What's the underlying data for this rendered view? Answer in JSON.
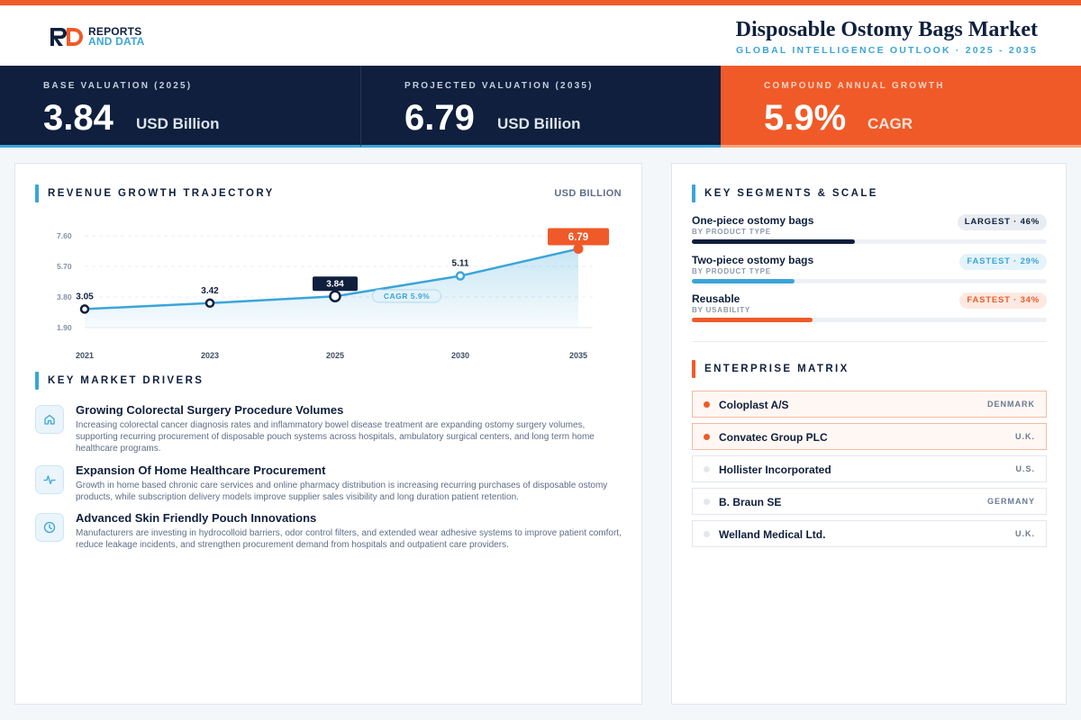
{
  "header": {
    "logo_line1": "REPORTS",
    "logo_line2": "AND DATA",
    "title": "Disposable Ostomy Bags Market",
    "subtitle": "GLOBAL INTELLIGENCE OUTLOOK  ·  2025 - 2035"
  },
  "kpis": [
    {
      "label": "BASE VALUATION (2025)",
      "value": "3.84",
      "unit": "USD Billion"
    },
    {
      "label": "PROJECTED VALUATION (2035)",
      "value": "6.79",
      "unit": "USD Billion"
    },
    {
      "label": "COMPOUND ANNUAL GROWTH",
      "value": "5.9%",
      "unit": "CAGR"
    }
  ],
  "revenue": {
    "title": "REVENUE GROWTH TRAJECTORY",
    "unit_label": "USD BILLION"
  },
  "chart_data": {
    "type": "line",
    "title": "REVENUE GROWTH TRAJECTORY",
    "ylabel": "USD BILLION",
    "x": [
      "2021",
      "2023",
      "2025",
      "2030",
      "2035"
    ],
    "series": [
      {
        "values": [
          3.05,
          3.42,
          3.84,
          5.11,
          6.79
        ]
      }
    ],
    "data_labels": [
      "3.05",
      "3.42",
      "3.84",
      "5.11",
      "6.79"
    ],
    "yticks": [
      "1.90",
      "3.80",
      "5.70",
      "7.60"
    ],
    "ylim": [
      1.9,
      7.6
    ],
    "annotation": "CAGR 5.9%",
    "highlight_points": [
      "2025",
      "2035"
    ],
    "grid": true,
    "area_fill": true,
    "colors": {
      "line": "#3aa5d8",
      "highlight_2025": "#0f1f3d",
      "highlight_2035": "#f05a28"
    }
  },
  "drivers": {
    "title": "KEY MARKET DRIVERS",
    "items": [
      {
        "icon": "home-icon",
        "title": "Growing Colorectal Surgery Procedure Volumes",
        "desc": "Increasing colorectal cancer diagnosis rates and inflammatory bowel disease treatment are expanding ostomy surgery volumes, supporting recurring procurement of disposable pouch systems across hospitals, ambulatory surgical centers, and long term home healthcare programs."
      },
      {
        "icon": "activity-icon",
        "title": "Expansion Of Home Healthcare Procurement",
        "desc": "Growth in home based chronic care services and online pharmacy distribution is increasing recurring purchases of disposable ostomy products, while subscription delivery models improve supplier sales visibility and long duration patient retention."
      },
      {
        "icon": "clock-icon",
        "title": "Advanced Skin Friendly Pouch Innovations",
        "desc": "Manufacturers are investing in hydrocolloid barriers, odor control filters, and extended wear adhesive systems to improve patient comfort, reduce leakage incidents, and strengthen procurement demand from hospitals and outpatient care providers."
      }
    ]
  },
  "segments": {
    "title": "KEY SEGMENTS & SCALE",
    "items": [
      {
        "name": "One-piece ostomy bags",
        "category": "BY PRODUCT TYPE",
        "badge": "LARGEST · 46%",
        "share": 0.46,
        "color": "#0f1f3d"
      },
      {
        "name": "Two-piece ostomy bags",
        "category": "BY PRODUCT TYPE",
        "badge": "FASTEST · 29%",
        "share": 0.29,
        "color": "#3aa5d8"
      },
      {
        "name": "Reusable",
        "category": "BY USABILITY",
        "badge": "FASTEST · 34%",
        "share": 0.34,
        "color": "#f05a28"
      }
    ]
  },
  "matrix": {
    "title": "ENTERPRISE MATRIX",
    "items": [
      {
        "name": "Coloplast A/S",
        "country": "DENMARK"
      },
      {
        "name": "Convatec Group PLC",
        "country": "U.K."
      },
      {
        "name": "Hollister Incorporated",
        "country": "U.S."
      },
      {
        "name": "B. Braun SE",
        "country": "GERMANY"
      },
      {
        "name": "Welland Medical Ltd.",
        "country": "U.K."
      }
    ]
  }
}
